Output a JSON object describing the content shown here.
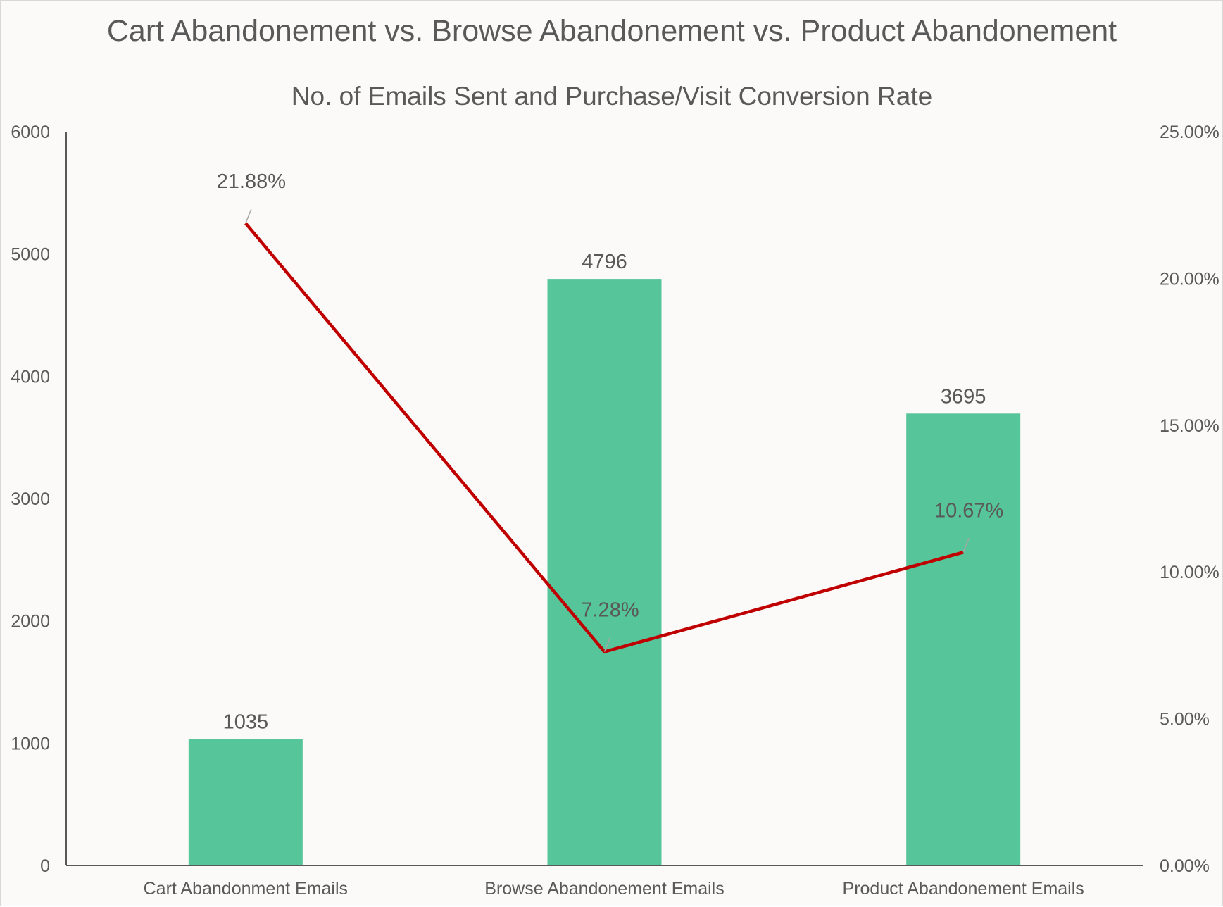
{
  "chart_data": {
    "type": "bar",
    "title": "Cart Abandonement vs. Browse Abandonement vs. Product Abandonement",
    "subtitle": "No. of Emails Sent and Purchase/Visit Conversion Rate",
    "categories": [
      "Cart Abandonment Emails",
      "Browse Abandonement Emails",
      "Product Abandonement Emails"
    ],
    "series": [
      {
        "type": "bar",
        "axis": "left",
        "values": [
          1035,
          4796,
          3695
        ],
        "labels": [
          "1035",
          "4796",
          "3695"
        ],
        "color": "#57c59a"
      },
      {
        "type": "line",
        "axis": "right",
        "values": [
          21.88,
          7.28,
          10.67
        ],
        "labels": [
          "21.88%",
          "7.28%",
          "10.67%"
        ],
        "color": "#c00000"
      }
    ],
    "y_left": {
      "range": [
        0,
        6000
      ],
      "ticks": [
        "0",
        "1000",
        "2000",
        "3000",
        "4000",
        "5000",
        "6000"
      ]
    },
    "y_right": {
      "range": [
        0,
        25
      ],
      "ticks": [
        "0.00%",
        "5.00%",
        "10.00%",
        "15.00%",
        "20.00%",
        "25.00%"
      ]
    },
    "grid": false,
    "legend": "none"
  }
}
